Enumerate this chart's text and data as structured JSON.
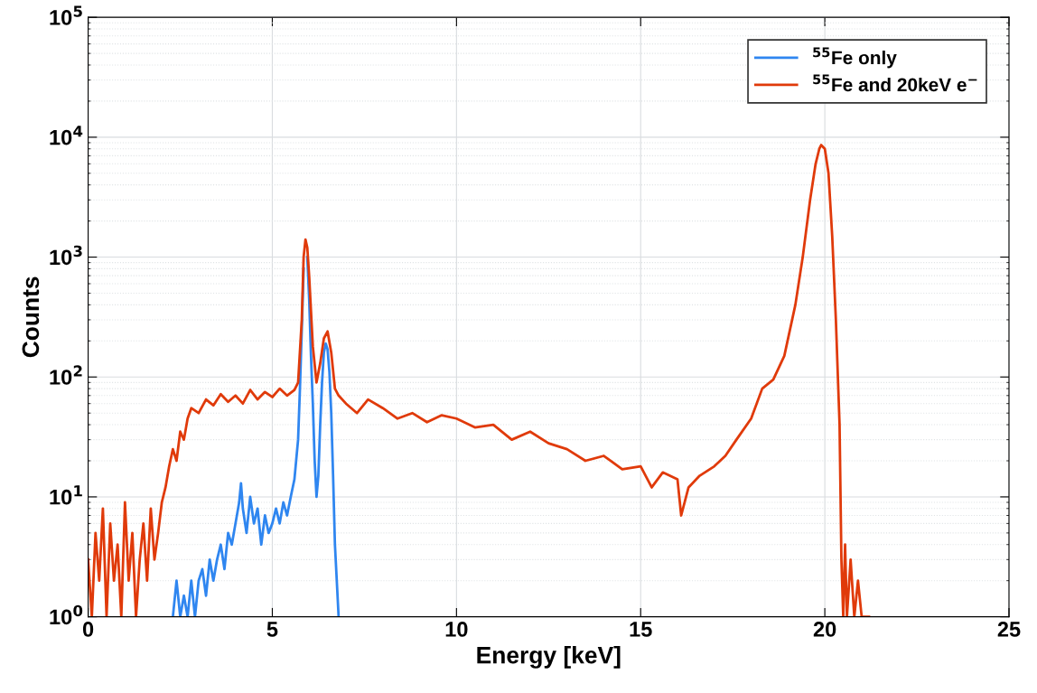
{
  "chart_data": {
    "type": "line",
    "xlabel": "Energy [keV]",
    "ylabel": "Counts",
    "log": "y",
    "grid": true,
    "legend": "top right",
    "line_style": "solid",
    "marker": "none",
    "xlim": [
      0,
      25
    ],
    "xticks": [
      0,
      5,
      10,
      15,
      20,
      25
    ],
    "ylim": [
      1,
      100000
    ],
    "yticks": [
      {
        "value": 1,
        "label": "10$^{0}$"
      },
      {
        "value": 10,
        "label": "10$^{1}$"
      },
      {
        "value": 100,
        "label": "10$^{2}$"
      },
      {
        "value": 1000,
        "label": "10$^{3}$"
      },
      {
        "value": 10000,
        "label": "10$^{4}$"
      },
      {
        "value": 100000,
        "label": "10$^{5}$"
      }
    ],
    "series": [
      {
        "name": "$^{55}$Fe only",
        "color": "#2f86f0",
        "x": [
          2.3,
          2.4,
          2.5,
          2.6,
          2.7,
          2.8,
          2.9,
          3.0,
          3.1,
          3.2,
          3.3,
          3.4,
          3.5,
          3.6,
          3.7,
          3.8,
          3.9,
          4.0,
          4.1,
          4.15,
          4.2,
          4.3,
          4.4,
          4.5,
          4.6,
          4.7,
          4.8,
          4.9,
          5.0,
          5.1,
          5.2,
          5.3,
          5.4,
          5.5,
          5.6,
          5.7,
          5.75,
          5.8,
          5.85,
          5.9,
          5.95,
          6.0,
          6.05,
          6.1,
          6.15,
          6.2,
          6.25,
          6.3,
          6.35,
          6.4,
          6.45,
          6.5,
          6.55,
          6.6,
          6.65,
          6.7,
          6.75,
          6.8
        ],
        "values": [
          1,
          2,
          1,
          1.5,
          1,
          2,
          1,
          2,
          2.5,
          1.5,
          3,
          2,
          3,
          4,
          2.5,
          5,
          4,
          6,
          9,
          13,
          8,
          5,
          10,
          6,
          8,
          4,
          7,
          5,
          6,
          8,
          6,
          9,
          7,
          10,
          14,
          30,
          80,
          250,
          800,
          null,
          1000,
          450,
          150,
          60,
          20,
          10,
          15,
          40,
          90,
          160,
          190,
          170,
          110,
          50,
          15,
          4,
          2,
          1
        ]
      },
      {
        "name": "$^{55}$Fe and 20keV e$^{−}$",
        "color": "#e03a0a",
        "x": [
          0.0,
          0.1,
          0.2,
          0.3,
          0.4,
          0.5,
          0.6,
          0.7,
          0.8,
          0.9,
          1.0,
          1.1,
          1.2,
          1.3,
          1.4,
          1.5,
          1.6,
          1.7,
          1.8,
          1.9,
          2.0,
          2.1,
          2.2,
          2.3,
          2.4,
          2.5,
          2.6,
          2.7,
          2.8,
          3.0,
          3.2,
          3.4,
          3.6,
          3.8,
          4.0,
          4.2,
          4.4,
          4.6,
          4.8,
          5.0,
          5.2,
          5.4,
          5.6,
          5.7,
          5.8,
          5.85,
          5.9,
          5.95,
          6.0,
          6.1,
          6.2,
          6.3,
          6.4,
          6.5,
          6.6,
          6.7,
          6.8,
          7.0,
          7.3,
          7.6,
          8.0,
          8.4,
          8.8,
          9.2,
          9.6,
          10.0,
          10.5,
          11.0,
          11.5,
          12.0,
          12.5,
          13.0,
          13.5,
          14.0,
          14.5,
          15.0,
          15.3,
          15.6,
          16.0,
          16.1,
          16.3,
          16.6,
          17.0,
          17.3,
          17.6,
          18.0,
          18.3,
          18.6,
          18.9,
          19.2,
          19.4,
          19.6,
          19.75,
          19.85,
          19.9,
          20.0,
          20.1,
          20.2,
          20.3,
          20.4,
          20.45,
          20.5,
          20.55,
          20.6,
          20.7,
          20.8,
          20.9,
          21.0,
          21.2
        ],
        "values": [
          3,
          1,
          5,
          2,
          8,
          1,
          6,
          2,
          4,
          1,
          9,
          2,
          5,
          1,
          3,
          6,
          2,
          8,
          3,
          5,
          9,
          12,
          18,
          25,
          20,
          35,
          30,
          45,
          55,
          50,
          65,
          58,
          72,
          62,
          70,
          60,
          78,
          65,
          75,
          68,
          80,
          70,
          78,
          90,
          300,
          1000,
          1400,
          1200,
          700,
          180,
          90,
          130,
          210,
          240,
          160,
          80,
          70,
          60,
          50,
          65,
          55,
          45,
          50,
          42,
          48,
          45,
          38,
          40,
          30,
          35,
          28,
          25,
          20,
          22,
          17,
          18,
          12,
          16,
          14,
          7,
          12,
          15,
          18,
          22,
          30,
          45,
          80,
          95,
          150,
          400,
          1000,
          3000,
          6000,
          8000,
          8600,
          8000,
          5000,
          1500,
          300,
          40,
          3,
          1,
          4,
          1,
          3,
          1,
          2,
          1,
          1
        ]
      }
    ]
  }
}
